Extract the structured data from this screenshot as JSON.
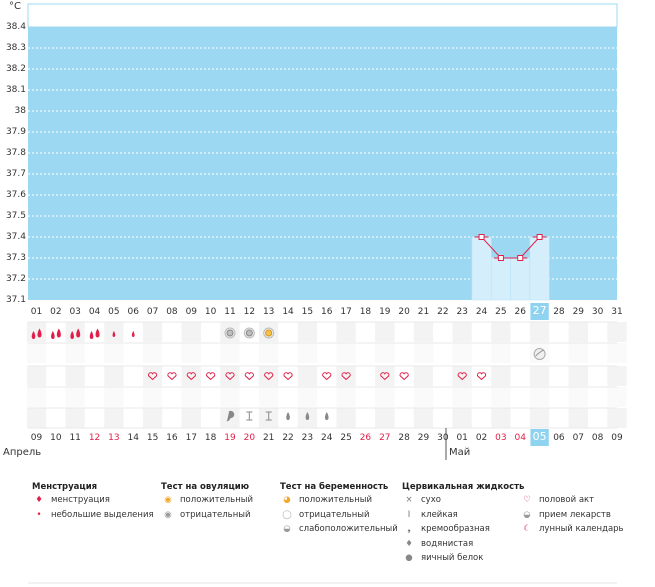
{
  "chart_data": {
    "type": "line",
    "unit": "°C",
    "ylim": [
      37.1,
      38.4
    ],
    "y_ticks": [
      "37.1",
      "37.2",
      "37.3",
      "37.4",
      "37.5",
      "37.6",
      "37.7",
      "37.8",
      "37.9",
      "38",
      "38.1",
      "38.2",
      "38.3",
      "38.4"
    ],
    "x_cycle_days": [
      "01",
      "02",
      "03",
      "04",
      "05",
      "06",
      "07",
      "08",
      "09",
      "10",
      "11",
      "12",
      "13",
      "14",
      "15",
      "16",
      "17",
      "18",
      "19",
      "20",
      "21",
      "22",
      "23",
      "24",
      "25",
      "26",
      "27",
      "28",
      "29",
      "30",
      "31"
    ],
    "x_dates": [
      "09",
      "10",
      "11",
      "12",
      "13",
      "14",
      "15",
      "16",
      "17",
      "18",
      "19",
      "20",
      "21",
      "22",
      "23",
      "24",
      "25",
      "26",
      "27",
      "28",
      "29",
      "30",
      "01",
      "02",
      "03",
      "04",
      "05",
      "06",
      "07",
      "08",
      "09"
    ],
    "red_date_indices": [
      3,
      4,
      10,
      11,
      17,
      18,
      24,
      25
    ],
    "selected_index": 26,
    "series": [
      {
        "points": [
          {
            "day": "24",
            "value": 37.4
          },
          {
            "day": "25",
            "value": 37.3
          },
          {
            "day": "26",
            "value": 37.3
          },
          {
            "day": "27",
            "value": 37.4
          }
        ]
      }
    ],
    "colors": {
      "plot_bg": "#9dd8f3",
      "bar": "#d4eefb",
      "line": "#e0204a",
      "grid": "#ffffff"
    }
  },
  "months": {
    "april": "Апрель",
    "may": "Май"
  },
  "calendar_rows": {
    "menstruation": {
      "heavy": [
        0,
        1,
        2,
        3
      ],
      "light": [
        4,
        5
      ]
    },
    "ovulation_negative": [
      10,
      11
    ],
    "ovulation_positive": [
      12
    ],
    "pregnancy_weak": [
      26
    ],
    "intercourse": [
      6,
      7,
      8,
      9,
      10,
      11,
      12,
      13,
      15,
      16,
      18,
      19,
      22,
      23
    ],
    "cervical": [
      {
        "index": 10,
        "symbol": "creamy"
      },
      {
        "index": 11,
        "symbol": "sticky"
      },
      {
        "index": 12,
        "symbol": "sticky"
      },
      {
        "index": 13,
        "symbol": "watery"
      },
      {
        "index": 14,
        "symbol": "watery"
      },
      {
        "index": 15,
        "symbol": "watery"
      }
    ]
  },
  "legend": [
    {
      "title": "Менструация",
      "items": [
        {
          "icon": "menstruation-icon",
          "label": "менструация"
        },
        {
          "icon": "light-spotting-icon",
          "label": "небольшие выделения"
        }
      ]
    },
    {
      "title": "Тест на овуляцию",
      "items": [
        {
          "icon": "ovulation-positive-icon",
          "label": "положительный"
        },
        {
          "icon": "ovulation-negative-icon",
          "label": "отрицательный"
        }
      ]
    },
    {
      "title": "Тест на беременность",
      "items": [
        {
          "icon": "pregnancy-positive-icon",
          "label": "положительный"
        },
        {
          "icon": "pregnancy-negative-icon",
          "label": "отрицательный"
        },
        {
          "icon": "pregnancy-weak-icon",
          "label": "слабоположительный"
        }
      ]
    },
    {
      "title": "Цервикальная жидкость",
      "items": [
        {
          "icon": "dry-icon",
          "label": "сухо"
        },
        {
          "icon": "sticky-icon",
          "label": "клейкая"
        },
        {
          "icon": "creamy-icon",
          "label": "кремообразная"
        },
        {
          "icon": "watery-icon",
          "label": "водянистая"
        },
        {
          "icon": "egg-white-icon",
          "label": "яичный белок"
        }
      ]
    },
    {
      "title": "",
      "items": [
        {
          "icon": "heart-icon",
          "label": "половой акт"
        },
        {
          "icon": "pill-icon",
          "label": "прием лекарств"
        },
        {
          "icon": "moon-icon",
          "label": "лунный календарь"
        }
      ]
    }
  ]
}
